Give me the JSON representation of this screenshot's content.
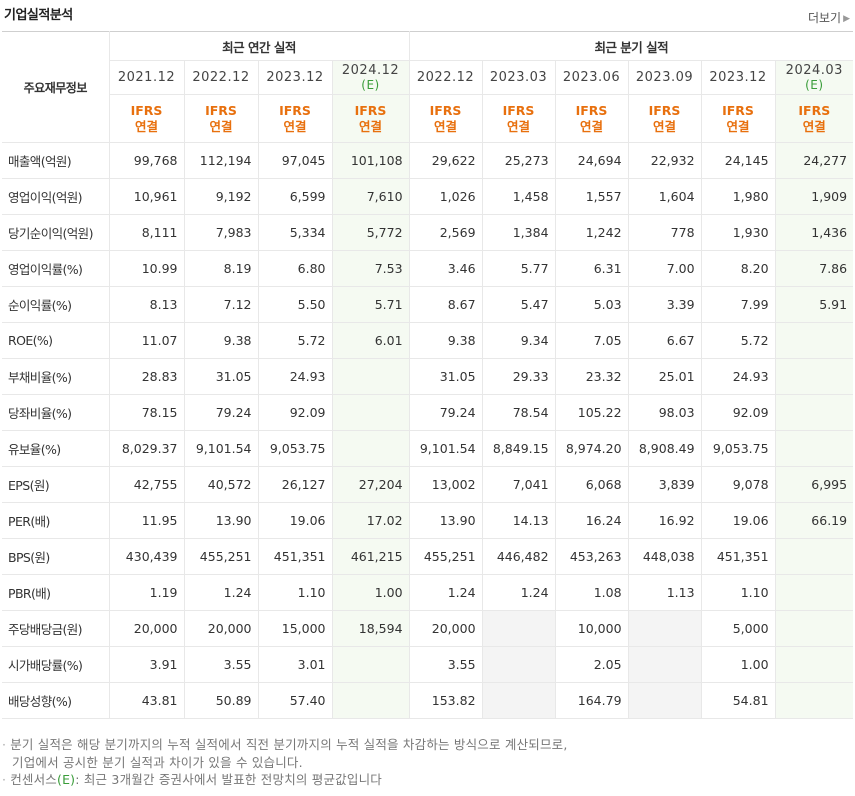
{
  "header": {
    "title": "기업실적분석",
    "more_label": "더보기"
  },
  "table": {
    "corner_label": "주요재무정보",
    "group_annual": "최근 연간 실적",
    "group_quarter": "최근 분기 실적",
    "annual_periods": [
      {
        "date": "2021.12",
        "est": ""
      },
      {
        "date": "2022.12",
        "est": ""
      },
      {
        "date": "2023.12",
        "est": ""
      },
      {
        "date": "2024.12",
        "est": "(E)"
      }
    ],
    "quarter_periods": [
      {
        "date": "2022.12",
        "est": ""
      },
      {
        "date": "2023.03",
        "est": ""
      },
      {
        "date": "2023.06",
        "est": ""
      },
      {
        "date": "2023.09",
        "est": ""
      },
      {
        "date": "2023.12",
        "est": ""
      },
      {
        "date": "2024.03",
        "est": "(E)"
      }
    ],
    "ifrs_line1": "IFRS",
    "ifrs_line2": "연결",
    "rows": [
      {
        "label": "매출액(억원)",
        "values": [
          "99,768",
          "112,194",
          "97,045",
          "101,108",
          "29,622",
          "25,273",
          "24,694",
          "22,932",
          "24,145",
          "24,277"
        ]
      },
      {
        "label": "영업이익(억원)",
        "values": [
          "10,961",
          "9,192",
          "6,599",
          "7,610",
          "1,026",
          "1,458",
          "1,557",
          "1,604",
          "1,980",
          "1,909"
        ]
      },
      {
        "label": "당기순이익(억원)",
        "values": [
          "8,111",
          "7,983",
          "5,334",
          "5,772",
          "2,569",
          "1,384",
          "1,242",
          "778",
          "1,930",
          "1,436"
        ]
      },
      {
        "label": "영업이익률(%)",
        "values": [
          "10.99",
          "8.19",
          "6.80",
          "7.53",
          "3.46",
          "5.77",
          "6.31",
          "7.00",
          "8.20",
          "7.86"
        ]
      },
      {
        "label": "순이익률(%)",
        "values": [
          "8.13",
          "7.12",
          "5.50",
          "5.71",
          "8.67",
          "5.47",
          "5.03",
          "3.39",
          "7.99",
          "5.91"
        ]
      },
      {
        "label": "ROE(%)",
        "values": [
          "11.07",
          "9.38",
          "5.72",
          "6.01",
          "9.38",
          "9.34",
          "7.05",
          "6.67",
          "5.72",
          ""
        ]
      },
      {
        "label": "부채비율(%)",
        "values": [
          "28.83",
          "31.05",
          "24.93",
          "",
          "31.05",
          "29.33",
          "23.32",
          "25.01",
          "24.93",
          ""
        ]
      },
      {
        "label": "당좌비율(%)",
        "values": [
          "78.15",
          "79.24",
          "92.09",
          "",
          "79.24",
          "78.54",
          "105.22",
          "98.03",
          "92.09",
          ""
        ]
      },
      {
        "label": "유보율(%)",
        "values": [
          "8,029.37",
          "9,101.54",
          "9,053.75",
          "",
          "9,101.54",
          "8,849.15",
          "8,974.20",
          "8,908.49",
          "9,053.75",
          ""
        ]
      },
      {
        "label": "EPS(원)",
        "values": [
          "42,755",
          "40,572",
          "26,127",
          "27,204",
          "13,002",
          "7,041",
          "6,068",
          "3,839",
          "9,078",
          "6,995"
        ]
      },
      {
        "label": "PER(배)",
        "values": [
          "11.95",
          "13.90",
          "19.06",
          "17.02",
          "13.90",
          "14.13",
          "16.24",
          "16.92",
          "19.06",
          "66.19"
        ]
      },
      {
        "label": "BPS(원)",
        "values": [
          "430,439",
          "455,251",
          "451,351",
          "461,215",
          "455,251",
          "446,482",
          "453,263",
          "448,038",
          "451,351",
          ""
        ]
      },
      {
        "label": "PBR(배)",
        "values": [
          "1.19",
          "1.24",
          "1.10",
          "1.00",
          "1.24",
          "1.24",
          "1.08",
          "1.13",
          "1.10",
          ""
        ]
      },
      {
        "label": "주당배당금(원)",
        "values": [
          "20,000",
          "20,000",
          "15,000",
          "18,594",
          "20,000",
          "",
          "10,000",
          "",
          "5,000",
          ""
        ]
      },
      {
        "label": "시가배당률(%)",
        "values": [
          "3.91",
          "3.55",
          "3.01",
          "",
          "3.55",
          "",
          "2.05",
          "",
          "1.00",
          ""
        ]
      },
      {
        "label": "배당성향(%)",
        "values": [
          "43.81",
          "50.89",
          "57.40",
          "",
          "153.82",
          "",
          "164.79",
          "",
          "54.81",
          ""
        ]
      }
    ]
  },
  "notes": {
    "line1": "분기 실적은 해당 분기까지의 누적 실적에서 직전 분기까지의 누적 실적을 차감하는 방식으로 계산되므로,",
    "line2": "기업에서 공시한 분기 실적과 차이가 있을 수 있습니다.",
    "line3_prefix": "컨센서스",
    "line3_e": "(E)",
    "line3_rest": ": 최근 3개월간 증권사에서 발표한 전망치의 평균값입니다"
  },
  "colors": {
    "ifrs": "#e8700e",
    "estimate": "#3a9d3a",
    "estimate_bg": "#f5faf2"
  }
}
